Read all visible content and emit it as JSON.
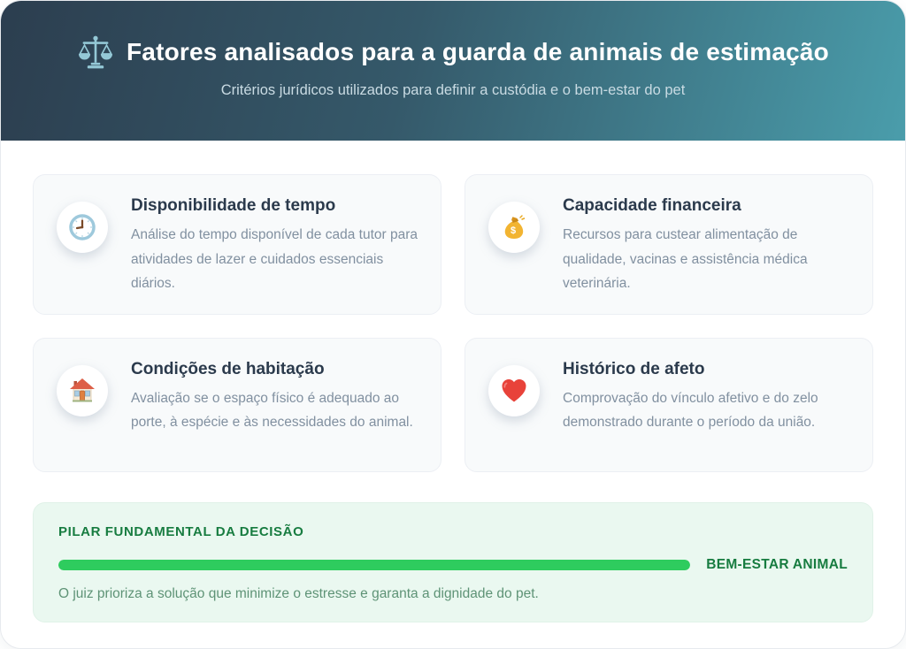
{
  "header": {
    "icon": "balance-scales-icon",
    "title": "Fatores analisados para a guarda de animais de estimação",
    "subtitle": "Critérios jurídicos utilizados para definir a custódia e o bem-estar do pet"
  },
  "cards": [
    {
      "icon": "clock-icon",
      "title": "Disponibilidade de tempo",
      "description": "Análise do tempo disponível de cada tutor para atividades de lazer e cuidados essenciais diários."
    },
    {
      "icon": "money-bag-icon",
      "title": "Capacidade financeira",
      "description": "Recursos para custear alimentação de qualidade, vacinas e assistência médica veterinária."
    },
    {
      "icon": "house-icon",
      "title": "Condições de habitação",
      "description": "Avaliação se o espaço físico é adequado ao porte, à espécie e às necessidades do animal."
    },
    {
      "icon": "heart-icon",
      "title": "Histórico de afeto",
      "description": "Comprovação do vínculo afetivo e do zelo demonstrado durante o período da união."
    }
  ],
  "decision": {
    "heading": "PILAR FUNDAMENTAL DA DECISÃO",
    "bar_label": "BEM-ESTAR ANIMAL",
    "bar_percent": 100,
    "note": "O juiz prioriza a solução que minimize o estresse e garanta a dignidade do pet."
  },
  "colors": {
    "header_gradient_start": "#2c3e4f",
    "header_gradient_end": "#4a9dab",
    "card_background": "#f8fafb",
    "card_title": "#2b3a4c",
    "card_text": "#8190a0",
    "panel_background": "#eaf8f0",
    "accent_green_dark": "#177c40",
    "accent_green_bar": "#2ecc5e"
  }
}
